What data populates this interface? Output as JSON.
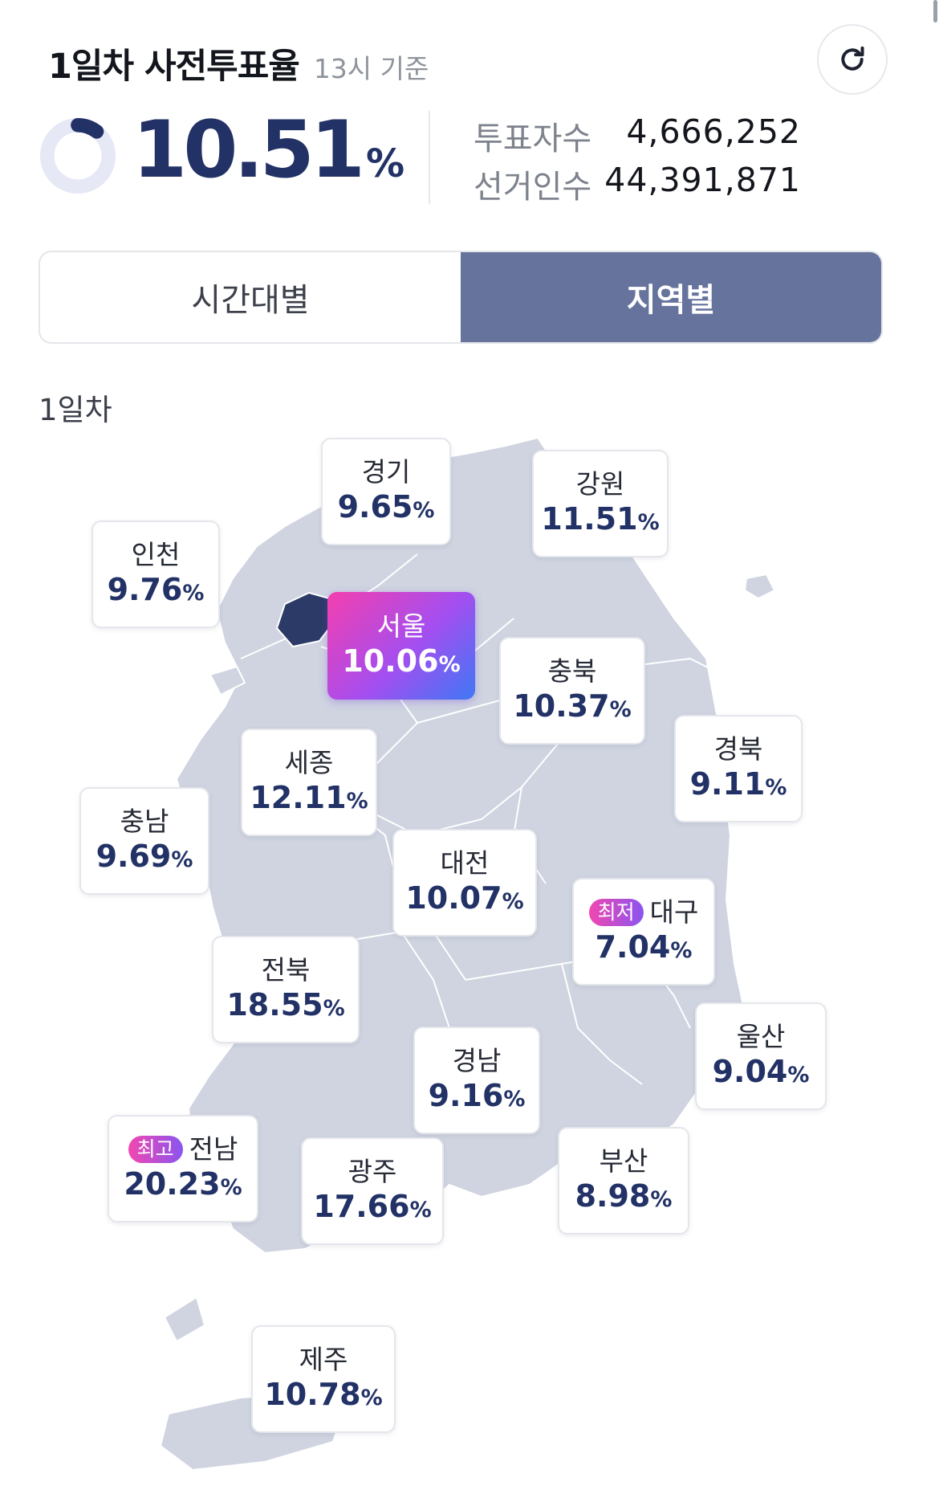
{
  "header": {
    "title": "1일차 사전투표율",
    "subtitle": "13시 기준"
  },
  "summary": {
    "turnout_value": "10.51",
    "turnout_unit": "%",
    "turnout_fraction": 0.1051,
    "voters_label": "투표자수",
    "voters_value": "4,666,252",
    "electorate_label": "선거인수",
    "electorate_value": "44,391,871"
  },
  "tabs": [
    {
      "label": "시간대별",
      "active": false
    },
    {
      "label": "지역별",
      "active": true
    }
  ],
  "day_label": "1일차",
  "unit": "%",
  "regions": [
    {
      "name": "경기",
      "rate": "9.65"
    },
    {
      "name": "강원",
      "rate": "11.51"
    },
    {
      "name": "인천",
      "rate": "9.76"
    },
    {
      "name": "서울",
      "rate": "10.06"
    },
    {
      "name": "충북",
      "rate": "10.37"
    },
    {
      "name": "경북",
      "rate": "9.11"
    },
    {
      "name": "세종",
      "rate": "12.11"
    },
    {
      "name": "충남",
      "rate": "9.69"
    },
    {
      "name": "대전",
      "rate": "10.07"
    },
    {
      "name": "대구",
      "rate": "7.04",
      "badge": "최저"
    },
    {
      "name": "전북",
      "rate": "18.55"
    },
    {
      "name": "울산",
      "rate": "9.04"
    },
    {
      "name": "경남",
      "rate": "9.16"
    },
    {
      "name": "전남",
      "rate": "20.23",
      "badge": "최고"
    },
    {
      "name": "광주",
      "rate": "17.66"
    },
    {
      "name": "부산",
      "rate": "8.98"
    },
    {
      "name": "제주",
      "rate": "10.78"
    }
  ],
  "colors": {
    "accent_navy": "#223266",
    "tab_active_bg": "#66739d",
    "map_fill": "#cfd4e0",
    "seoul_fill": "#2b3a67",
    "donut_track": "#e6e8f6"
  },
  "icons": {
    "refresh": "refresh-icon"
  }
}
